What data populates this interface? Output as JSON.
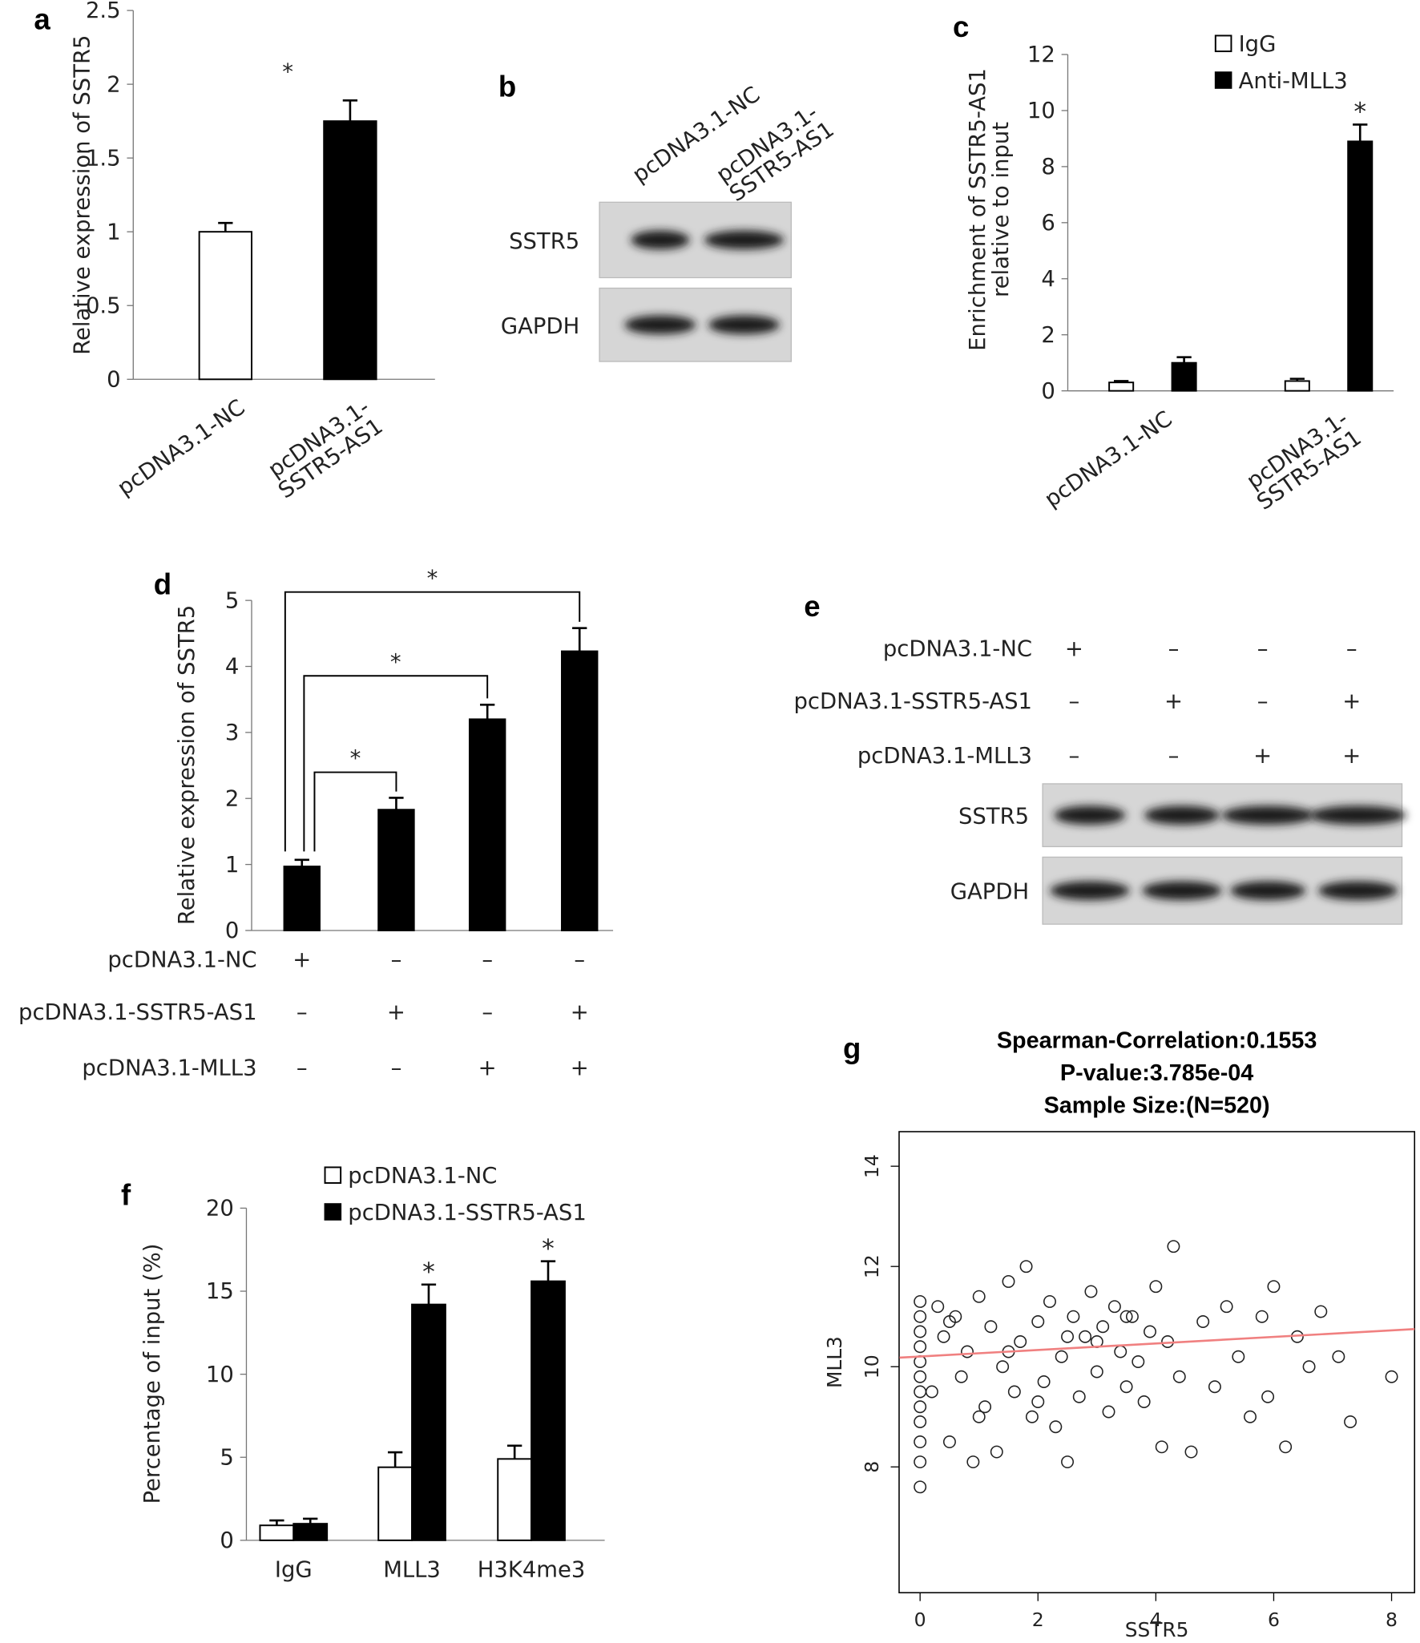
{
  "chart_data": [
    {
      "panel": "a",
      "type": "bar",
      "ylabel": "Relative expression of SSTR5",
      "categories": [
        "pcDNA3.1-NC",
        "pcDNA3.1-\nSSTR5-AS1"
      ],
      "values": [
        1.0,
        1.75
      ],
      "errors": [
        0.06,
        0.14
      ],
      "colors": [
        "#ffffff",
        "#000000"
      ],
      "annotation": "*",
      "ylim": [
        0,
        2.5
      ],
      "yticks": [
        0,
        0.5,
        1,
        1.5,
        2,
        2.5
      ]
    },
    {
      "panel": "b",
      "type": "blot",
      "lanes": [
        "pcDNA3.1-NC",
        "pcDNA3.1-\nSSTR5-AS1"
      ],
      "bands": [
        "SSTR5",
        "GAPDH"
      ]
    },
    {
      "panel": "c",
      "type": "grouped_bar",
      "ylabel": "Enrichment of SSTR5-AS1\nrelative to input",
      "categories": [
        "pcDNA3.1-NC",
        "pcDNA3.1-\nSSTR5-AS1"
      ],
      "series": [
        {
          "name": "IgG",
          "color": "#ffffff",
          "values": [
            0.3,
            0.35
          ],
          "errors": [
            0.05,
            0.08
          ],
          "significance": [
            null,
            null
          ]
        },
        {
          "name": "Anti-MLL3",
          "color": "#000000",
          "values": [
            1.0,
            8.9
          ],
          "errors": [
            0.2,
            0.6
          ],
          "significance": [
            null,
            "*"
          ]
        }
      ],
      "ylim": [
        0,
        12
      ],
      "yticks": [
        0,
        2,
        4,
        6,
        8,
        10,
        12
      ]
    },
    {
      "panel": "d",
      "type": "bar",
      "ylabel": "Relative expression of SSTR5",
      "values": [
        0.97,
        1.83,
        3.2,
        4.23
      ],
      "errors": [
        0.1,
        0.18,
        0.22,
        0.35
      ],
      "colors": [
        "#000000",
        "#000000",
        "#000000",
        "#000000"
      ],
      "comparisons": [
        "*",
        "*",
        "*"
      ],
      "conditions": [
        {
          "label": "pcDNA3.1-NC",
          "signs": [
            "+",
            "–",
            "–",
            "–"
          ]
        },
        {
          "label": "pcDNA3.1-SSTR5-AS1",
          "signs": [
            "–",
            "+",
            "–",
            "+"
          ]
        },
        {
          "label": "pcDNA3.1-MLL3",
          "signs": [
            "–",
            "–",
            "+",
            "+"
          ]
        }
      ],
      "ylim": [
        0,
        5
      ],
      "yticks": [
        0,
        1,
        2,
        3,
        4,
        5
      ]
    },
    {
      "panel": "e",
      "type": "blot",
      "conditions": [
        {
          "label": "pcDNA3.1-NC",
          "signs": [
            "+",
            "–",
            "–",
            "–"
          ]
        },
        {
          "label": "pcDNA3.1-SSTR5-AS1",
          "signs": [
            "–",
            "+",
            "–",
            "+"
          ]
        },
        {
          "label": "pcDNA3.1-MLL3",
          "signs": [
            "–",
            "–",
            "+",
            "+"
          ]
        }
      ],
      "bands": [
        "SSTR5",
        "GAPDH"
      ]
    },
    {
      "panel": "f",
      "type": "grouped_bar",
      "ylabel": "Percentage of input (%)",
      "categories": [
        "IgG",
        "MLL3",
        "H3K4me3"
      ],
      "series": [
        {
          "name": "pcDNA3.1-NC",
          "color": "#ffffff",
          "values": [
            0.9,
            4.4,
            4.9
          ],
          "errors": [
            0.3,
            0.9,
            0.8
          ],
          "significance": [
            null,
            null,
            null
          ]
        },
        {
          "name": "pcDNA3.1-SSTR5-AS1",
          "color": "#000000",
          "values": [
            1.0,
            14.2,
            15.6
          ],
          "errors": [
            0.3,
            1.2,
            1.2
          ],
          "significance": [
            null,
            "*",
            "*"
          ]
        }
      ],
      "ylim": [
        0,
        20
      ],
      "yticks": [
        0,
        5,
        10,
        15,
        20
      ]
    },
    {
      "panel": "g",
      "type": "scatter",
      "title": [
        "Spearman-Correlation:0.1553",
        "P-value:3.785e-04",
        "Sample Size:(N=520)"
      ],
      "xlabel": "SSTR5",
      "ylabel": "MLL3",
      "x": [
        0,
        0,
        0,
        0,
        0,
        0,
        0,
        0,
        0,
        0,
        0,
        0,
        0.2,
        0.3,
        0.4,
        0.5,
        0.6,
        0.7,
        0.8,
        0.9,
        1.0,
        1.1,
        1.2,
        1.3,
        1.4,
        1.5,
        1.6,
        1.7,
        1.8,
        1.9,
        2.0,
        2.1,
        2.2,
        2.3,
        2.4,
        2.5,
        2.6,
        2.7,
        2.8,
        2.9,
        3.0,
        3.1,
        3.2,
        3.3,
        3.4,
        3.5,
        3.6,
        3.7,
        3.8,
        3.9,
        4.0,
        4.1,
        4.2,
        4.3,
        4.4,
        4.6,
        4.8,
        5.0,
        5.2,
        5.4,
        5.6,
        5.8,
        6.0,
        6.2,
        6.4,
        6.6,
        6.8,
        7.3,
        8.0,
        7.1,
        5.9,
        0.5,
        1.0,
        1.5,
        2.0,
        2.5,
        3.0,
        3.5
      ],
      "y": [
        11.3,
        11.0,
        10.7,
        10.4,
        10.1,
        9.8,
        9.5,
        9.2,
        8.9,
        8.5,
        8.1,
        7.6,
        9.5,
        11.2,
        10.6,
        8.5,
        11.0,
        9.8,
        10.3,
        8.1,
        11.4,
        9.2,
        10.8,
        8.3,
        10.0,
        11.7,
        9.5,
        10.5,
        12.0,
        9.0,
        10.9,
        9.7,
        11.3,
        8.8,
        10.2,
        8.1,
        11.0,
        9.4,
        10.6,
        11.5,
        9.9,
        10.8,
        9.1,
        11.2,
        10.3,
        9.6,
        11.0,
        10.1,
        9.3,
        10.7,
        11.6,
        8.4,
        10.5,
        12.4,
        9.8,
        8.3,
        10.9,
        9.6,
        11.2,
        10.2,
        9.0,
        11.0,
        11.6,
        8.4,
        10.6,
        10.0,
        11.1,
        8.9,
        9.8,
        10.2,
        9.4,
        10.9,
        9.0,
        10.3,
        9.3,
        10.6,
        10.5,
        11.0
      ],
      "fit_line": {
        "color": "#f08080",
        "x": [
          -0.35,
          8.39
        ],
        "y": [
          10.18,
          10.75
        ]
      },
      "xlim": [
        -0.356,
        8.39
      ],
      "ylim": [
        5.49,
        14.69
      ],
      "xticks": [
        0,
        2,
        4,
        6,
        8
      ],
      "yticks": [
        8,
        10,
        12,
        14
      ]
    }
  ]
}
